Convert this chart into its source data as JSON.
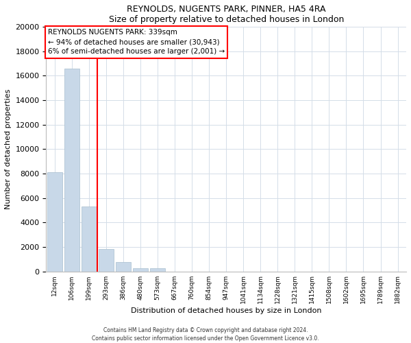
{
  "title": "REYNOLDS, NUGENTS PARK, PINNER, HA5 4RA",
  "subtitle": "Size of property relative to detached houses in London",
  "xlabel": "Distribution of detached houses by size in London",
  "ylabel": "Number of detached properties",
  "bar_color": "#c8d8e8",
  "bar_edge_color": "#a8bece",
  "categories": [
    "12sqm",
    "106sqm",
    "199sqm",
    "293sqm",
    "386sqm",
    "480sqm",
    "573sqm",
    "667sqm",
    "760sqm",
    "854sqm",
    "947sqm",
    "1041sqm",
    "1134sqm",
    "1228sqm",
    "1321sqm",
    "1415sqm",
    "1508sqm",
    "1602sqm",
    "1695sqm",
    "1789sqm",
    "1882sqm"
  ],
  "values": [
    8100,
    16600,
    5300,
    1850,
    750,
    280,
    250,
    0,
    0,
    0,
    0,
    0,
    0,
    0,
    0,
    0,
    0,
    0,
    0,
    0,
    0
  ],
  "ylim": [
    0,
    20000
  ],
  "yticks": [
    0,
    2000,
    4000,
    6000,
    8000,
    10000,
    12000,
    14000,
    16000,
    18000,
    20000
  ],
  "red_line_x": 2.5,
  "annotation_title": "REYNOLDS NUGENTS PARK: 339sqm",
  "annotation_line1": "← 94% of detached houses are smaller (30,943)",
  "annotation_line2": "6% of semi-detached houses are larger (2,001) →",
  "footer_line1": "Contains HM Land Registry data © Crown copyright and database right 2024.",
  "footer_line2": "Contains public sector information licensed under the Open Government Licence v3.0.",
  "grid_color": "#d4dde8"
}
